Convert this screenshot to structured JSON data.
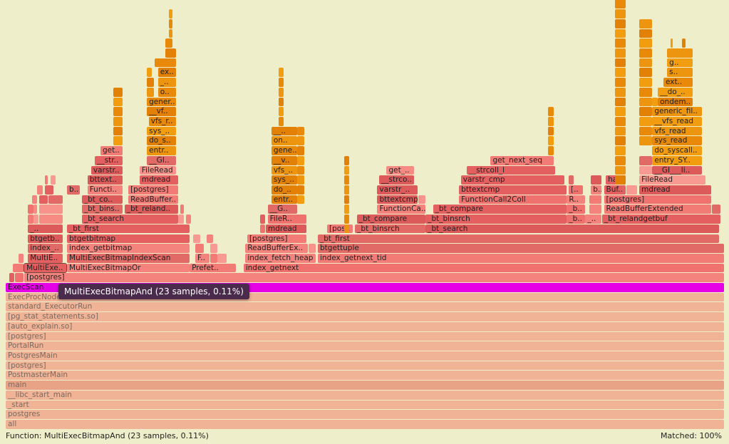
{
  "colors": {
    "red": "#e45f5f",
    "pink": "#f37b76",
    "light": "#f8938b",
    "orange": "#e98909",
    "orange2": "#f29c10",
    "base": "#f0b396",
    "base_dark": "#e8a286",
    "highlight": "#e600e6",
    "background": "#eeeecb",
    "tooltip": "#4b2b4c"
  },
  "tooltip": {
    "text": "MultiExecBitmapAnd (23 samples, 0.11%)"
  },
  "status": {
    "function": "Function: MultiExecBitmapAnd (23 samples, 0.11%)",
    "matched": "Matched: 100%"
  },
  "chart_data": {
    "type": "flamegraph",
    "view_root": "ExecScan",
    "view_samples": 387,
    "selected": {
      "name": "MultiExecBitmapAnd",
      "samples": 23,
      "percent": 0.11
    },
    "frame_fields": [
      "level",
      "start_sample",
      "samples",
      "label",
      "color"
    ],
    "frames": [
      [
        0,
        0,
        387,
        "all",
        "b"
      ],
      [
        1,
        0,
        387,
        "postgres",
        "b"
      ],
      [
        2,
        0,
        387,
        "_start",
        "b"
      ],
      [
        3,
        0,
        387,
        "__libc_start_main",
        "b"
      ],
      [
        4,
        0,
        387,
        "main",
        "bd"
      ],
      [
        5,
        0,
        387,
        "PostmasterMain",
        "b"
      ],
      [
        6,
        0,
        387,
        "[postgres]",
        "b"
      ],
      [
        7,
        0,
        387,
        "PostgresMain",
        "b"
      ],
      [
        8,
        0,
        387,
        "PortalRun",
        "b"
      ],
      [
        9,
        0,
        387,
        "[postgres]",
        "b"
      ],
      [
        10,
        0,
        387,
        "[auto_explain.so]",
        "b"
      ],
      [
        11,
        0,
        387,
        "[pg_stat_statements.so]",
        "b"
      ],
      [
        12,
        0,
        387,
        "standard_ExecutorRun",
        "b"
      ],
      [
        13,
        0,
        387,
        "ExecProcNode",
        "b"
      ],
      [
        14,
        0,
        387,
        "ExecScan",
        "m"
      ],
      [
        15,
        2,
        3,
        "",
        "r"
      ],
      [
        15,
        5,
        5,
        "",
        "p"
      ],
      [
        15,
        10,
        377,
        "[postgres]",
        "p"
      ],
      [
        16,
        4,
        6,
        "",
        "p"
      ],
      [
        16,
        10,
        23,
        "MultiExe..",
        "hl"
      ],
      [
        16,
        33,
        66,
        "MultiExecBitmapOr",
        "p"
      ],
      [
        16,
        99,
        25,
        "Prefet..",
        "p"
      ],
      [
        16,
        128,
        259,
        "index_getnext",
        "p"
      ],
      [
        17,
        7,
        3,
        "",
        "p"
      ],
      [
        17,
        12,
        19,
        "MultiE..",
        "r"
      ],
      [
        17,
        33,
        66,
        "MultiExecBitmapIndexScan",
        "r"
      ],
      [
        17,
        102,
        8,
        "F..",
        "p"
      ],
      [
        17,
        110,
        4,
        "",
        "p"
      ],
      [
        17,
        114,
        5,
        "",
        "l"
      ],
      [
        17,
        129,
        38,
        "index_fetch_heap",
        "p"
      ],
      [
        17,
        168,
        219,
        "index_getnext_tid",
        "p"
      ],
      [
        18,
        12,
        19,
        "index_..",
        "r"
      ],
      [
        18,
        33,
        66,
        "index_getbitmap",
        "p"
      ],
      [
        18,
        102,
        5,
        "",
        "p"
      ],
      [
        18,
        110,
        4,
        "",
        "l"
      ],
      [
        18,
        129,
        34,
        "ReadBufferEx..",
        "p"
      ],
      [
        18,
        163,
        4,
        "",
        "l"
      ],
      [
        18,
        168,
        219,
        "btgettuple",
        "r"
      ],
      [
        19,
        12,
        19,
        "btgetb..",
        "r"
      ],
      [
        19,
        33,
        66,
        "btgetbitmap",
        "r"
      ],
      [
        19,
        101,
        4,
        "",
        "l"
      ],
      [
        19,
        108,
        4,
        "",
        "p"
      ],
      [
        19,
        130,
        32,
        "[postgres]",
        "p"
      ],
      [
        19,
        168,
        216,
        "_bt_first",
        "r"
      ],
      [
        20,
        12,
        19,
        "_..",
        "r"
      ],
      [
        20,
        33,
        66,
        "_bt_first",
        "r"
      ],
      [
        20,
        137,
        3,
        "",
        "p"
      ],
      [
        20,
        140,
        22,
        "mdread",
        "r"
      ],
      [
        20,
        173,
        14,
        "[pos..",
        "p"
      ],
      [
        20,
        188,
        38,
        "_bt_binsrch",
        "r"
      ],
      [
        20,
        226,
        158,
        "_bt_search",
        "r"
      ],
      [
        21,
        12,
        3,
        "",
        "p"
      ],
      [
        21,
        15,
        3,
        "",
        "l"
      ],
      [
        21,
        18,
        13,
        "",
        "l"
      ],
      [
        21,
        41,
        52,
        "_bt_search",
        "r"
      ],
      [
        21,
        93,
        3,
        "",
        "l"
      ],
      [
        21,
        97,
        3,
        "",
        "p"
      ],
      [
        21,
        137,
        3,
        "",
        "r"
      ],
      [
        21,
        141,
        21,
        "FileR..",
        "p"
      ],
      [
        21,
        189,
        37,
        "_bt_compare",
        "r"
      ],
      [
        21,
        226,
        76,
        "_bt_binsrch",
        "r"
      ],
      [
        21,
        302,
        10,
        "_b..",
        "p"
      ],
      [
        21,
        312,
        9,
        "_..",
        "p"
      ],
      [
        21,
        321,
        64,
        "_bt_relandgetbuf",
        "r"
      ],
      [
        22,
        12,
        3,
        "",
        "p"
      ],
      [
        22,
        15,
        2,
        "",
        "l"
      ],
      [
        22,
        18,
        13,
        "",
        "l"
      ],
      [
        22,
        41,
        22,
        "_bt_bins..",
        "r"
      ],
      [
        22,
        64,
        29,
        "_bt_reland..",
        "r"
      ],
      [
        22,
        94,
        2,
        "",
        "p"
      ],
      [
        22,
        141,
        16,
        "__G..",
        "r"
      ],
      [
        22,
        200,
        26,
        "FunctionCa..",
        "p"
      ],
      [
        22,
        230,
        72,
        "_bt_compare",
        "r"
      ],
      [
        22,
        302,
        10,
        "_b..",
        "p"
      ],
      [
        22,
        314,
        7,
        "",
        "p"
      ],
      [
        22,
        322,
        58,
        "ReadBufferExtended",
        "p"
      ],
      [
        22,
        380,
        5,
        "",
        "r"
      ],
      [
        23,
        14,
        3,
        "",
        "p"
      ],
      [
        23,
        18,
        5,
        "",
        "r"
      ],
      [
        23,
        23,
        8,
        "",
        "r"
      ],
      [
        23,
        41,
        22,
        "_bt_co..",
        "r"
      ],
      [
        23,
        66,
        27,
        "ReadBuffer..",
        "p"
      ],
      [
        23,
        143,
        14,
        "entr..",
        "o"
      ],
      [
        23,
        200,
        22,
        "bttextcmp",
        "r"
      ],
      [
        23,
        222,
        4,
        "",
        "l"
      ],
      [
        23,
        244,
        58,
        "FunctionCall2Coll",
        "p"
      ],
      [
        23,
        302,
        10,
        "R..",
        "p"
      ],
      [
        23,
        314,
        7,
        "",
        "p"
      ],
      [
        23,
        322,
        58,
        "[postgres]",
        "p"
      ],
      [
        24,
        17,
        3,
        "",
        "p"
      ],
      [
        24,
        21,
        5,
        "",
        "r"
      ],
      [
        24,
        33,
        7,
        "b..",
        "r"
      ],
      [
        24,
        44,
        19,
        "Functi..",
        "p"
      ],
      [
        24,
        66,
        27,
        "[postgres]",
        "p"
      ],
      [
        24,
        143,
        14,
        "do_..",
        "o"
      ],
      [
        24,
        200,
        22,
        "varstr_..",
        "r"
      ],
      [
        24,
        244,
        58,
        "bttextcmp",
        "r"
      ],
      [
        24,
        303,
        8,
        "[..",
        "p"
      ],
      [
        24,
        315,
        6,
        "b..",
        "p"
      ],
      [
        24,
        322,
        12,
        "Buf..",
        "r"
      ],
      [
        24,
        334,
        6,
        "",
        "l"
      ],
      [
        24,
        341,
        39,
        "mdread",
        "r"
      ],
      [
        25,
        21,
        2,
        "",
        "p"
      ],
      [
        25,
        24,
        3,
        "",
        "l"
      ],
      [
        25,
        44,
        19,
        "bttext..",
        "r"
      ],
      [
        25,
        72,
        21,
        "mdread",
        "r"
      ],
      [
        25,
        143,
        14,
        "sys_..",
        "o"
      ],
      [
        25,
        201,
        19,
        "__strco..",
        "r"
      ],
      [
        25,
        245,
        56,
        "varstr_cmp",
        "r"
      ],
      [
        25,
        303,
        3,
        "",
        "r"
      ],
      [
        25,
        315,
        6,
        "",
        "r"
      ],
      [
        25,
        323,
        11,
        "ha..",
        "r"
      ],
      [
        25,
        341,
        36,
        "FileRead",
        "l"
      ],
      [
        26,
        46,
        17,
        "varstr..",
        "r"
      ],
      [
        26,
        72,
        20,
        "FileRead",
        "l"
      ],
      [
        26,
        143,
        14,
        "vfs_..",
        "o"
      ],
      [
        26,
        205,
        15,
        "get_..",
        "l"
      ],
      [
        26,
        248,
        48,
        "__strcoll_l",
        "r"
      ],
      [
        26,
        341,
        7,
        "",
        "l"
      ],
      [
        26,
        348,
        27,
        "__GI___li..",
        "r"
      ],
      [
        27,
        48,
        15,
        "__str..",
        "r"
      ],
      [
        27,
        76,
        16,
        "__GI..",
        "r"
      ],
      [
        27,
        143,
        14,
        "__v..",
        "o"
      ],
      [
        27,
        261,
        34,
        "get_next_seq",
        "p"
      ],
      [
        27,
        341,
        7,
        "",
        "r"
      ],
      [
        27,
        348,
        27,
        "entry_SY..",
        "o"
      ],
      [
        28,
        51,
        12,
        "get..",
        "p"
      ],
      [
        28,
        76,
        16,
        "entr..",
        "o"
      ],
      [
        28,
        143,
        14,
        "gene..",
        "o"
      ],
      [
        28,
        348,
        27,
        "do_syscall..",
        "o"
      ],
      [
        29,
        76,
        16,
        "do_s..",
        "o"
      ],
      [
        29,
        143,
        14,
        "on..",
        "o"
      ],
      [
        29,
        348,
        27,
        "sys_read",
        "o"
      ],
      [
        30,
        76,
        16,
        "sys_..",
        "o"
      ],
      [
        30,
        143,
        14,
        "__..",
        "o"
      ],
      [
        30,
        348,
        27,
        "vfs_read",
        "o"
      ],
      [
        31,
        77,
        15,
        "vfs_r..",
        "o"
      ],
      [
        31,
        348,
        27,
        "__vfs_read",
        "o"
      ],
      [
        32,
        76,
        16,
        "__vf..",
        "o"
      ],
      [
        32,
        348,
        27,
        "generic_fil..",
        "o"
      ],
      [
        33,
        76,
        16,
        "gener..",
        "o"
      ],
      [
        33,
        348,
        3,
        "",
        "o"
      ],
      [
        33,
        351,
        19,
        "ondem..",
        "o"
      ],
      [
        34,
        76,
        4,
        "",
        "o"
      ],
      [
        34,
        82,
        10,
        "o..",
        "o"
      ],
      [
        34,
        351,
        19,
        "__do_..",
        "o"
      ],
      [
        35,
        76,
        4,
        "",
        "o"
      ],
      [
        35,
        82,
        10,
        "_..",
        "o"
      ],
      [
        35,
        354,
        16,
        "ext..",
        "o"
      ],
      [
        36,
        76,
        3,
        "",
        "o"
      ],
      [
        36,
        82,
        10,
        "ex..",
        "o"
      ],
      [
        36,
        356,
        14,
        "s..",
        "o"
      ],
      [
        37,
        80,
        12,
        "",
        "o"
      ],
      [
        37,
        356,
        14,
        "g..",
        "o"
      ],
      [
        38,
        86,
        6,
        "",
        "o"
      ],
      [
        38,
        356,
        14,
        "",
        "o"
      ],
      [
        39,
        86,
        4,
        "",
        "o"
      ],
      [
        39,
        358,
        1,
        "",
        "o"
      ],
      [
        39,
        364,
        2,
        "",
        "o"
      ],
      [
        40,
        88,
        2,
        "",
        "o"
      ],
      [
        41,
        88,
        2,
        "",
        "o"
      ],
      [
        42,
        88,
        2,
        "",
        "o"
      ]
    ],
    "column_fields": [
      "start_sample",
      "samples",
      "from_level",
      "to_level",
      "color"
    ],
    "columns": [
      [
        58,
        5,
        29,
        34,
        "o"
      ],
      [
        147,
        3,
        31,
        36,
        "o"
      ],
      [
        157,
        4,
        23,
        30,
        "o"
      ],
      [
        182,
        3,
        20,
        27,
        "o"
      ],
      [
        292,
        3,
        28,
        32,
        "o"
      ],
      [
        328,
        6,
        25,
        44,
        "o"
      ],
      [
        341,
        7,
        29,
        41,
        "o"
      ]
    ]
  }
}
